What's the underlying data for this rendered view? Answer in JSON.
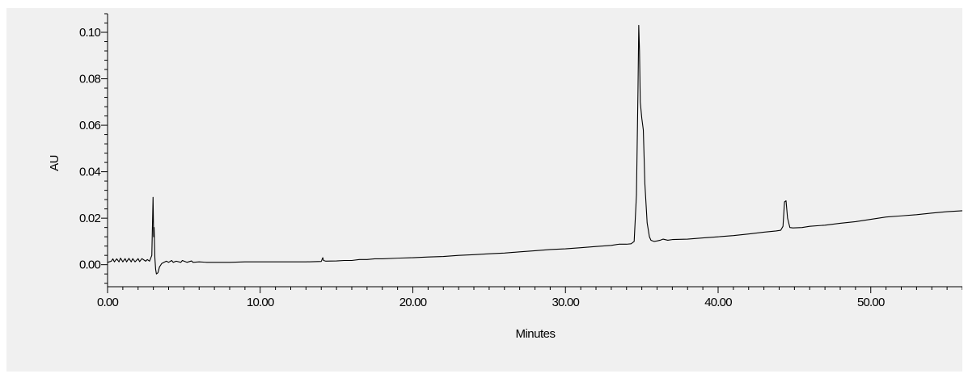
{
  "chart_data": {
    "type": "line",
    "title": "",
    "xlabel": "Minutes",
    "ylabel": "AU",
    "xlim": [
      0,
      56
    ],
    "ylim": [
      -0.0095,
      0.108
    ],
    "x_ticks": [
      0,
      10,
      20,
      30,
      40,
      50
    ],
    "x_tick_labels": [
      "0.00",
      "10.00",
      "20.00",
      "30.00",
      "40.00",
      "50.00"
    ],
    "y_ticks": [
      0,
      0.02,
      0.04,
      0.06,
      0.08,
      0.1
    ],
    "y_tick_labels": [
      "0.00",
      "0.02",
      "0.04",
      "0.06",
      "0.08",
      "0.10"
    ],
    "grid": false,
    "series": [
      {
        "color": "#000000",
        "x": [
          0,
          0.25,
          0.35,
          0.45,
          0.6,
          0.75,
          0.85,
          1.0,
          1.15,
          1.25,
          1.4,
          1.55,
          1.65,
          1.8,
          2.0,
          2.1,
          2.25,
          2.5,
          2.6,
          2.75,
          2.9,
          2.98,
          3.02,
          3.05,
          3.1,
          3.15,
          3.2,
          3.3,
          3.4,
          3.55,
          3.7,
          3.85,
          4.0,
          4.2,
          4.3,
          4.5,
          4.8,
          4.9,
          5.2,
          5.5,
          5.6,
          6.0,
          6.5,
          7.0,
          8.0,
          9.0,
          10.0,
          11.0,
          12.0,
          13.0,
          14.0,
          14.1,
          14.15,
          14.3,
          15.0,
          15.5,
          16.0,
          16.5,
          17.0,
          17.5,
          18.0,
          19.0,
          20.0,
          21.0,
          22.0,
          23.0,
          24.0,
          25.0,
          26.0,
          27.0,
          28.0,
          29.0,
          30.0,
          31.0,
          32.0,
          33.0,
          33.5,
          34.0,
          34.3,
          34.5,
          34.65,
          34.75,
          34.8,
          34.85,
          34.9,
          35.0,
          35.1,
          35.2,
          35.35,
          35.5,
          35.6,
          35.8,
          36.0,
          36.2,
          36.4,
          36.7,
          37.0,
          38.0,
          39.0,
          40.0,
          41.0,
          42.0,
          43.0,
          43.8,
          44.1,
          44.25,
          44.35,
          44.45,
          44.55,
          44.7,
          44.9,
          45.5,
          46.0,
          47.0,
          48.0,
          49.0,
          50.0,
          51.0,
          52.0,
          53.0,
          54.0,
          55.0,
          56.0
        ],
        "y": [
          0.001,
          0.0015,
          0.0025,
          0.0012,
          0.0025,
          0.0012,
          0.0028,
          0.0012,
          0.0026,
          0.0012,
          0.0027,
          0.0012,
          0.0026,
          0.0012,
          0.0026,
          0.0013,
          0.0026,
          0.0015,
          0.0022,
          0.0015,
          0.004,
          0.029,
          0.012,
          0.016,
          0.003,
          -0.002,
          -0.004,
          -0.0035,
          -0.001,
          0.0005,
          0.001,
          0.0015,
          0.001,
          0.0018,
          0.001,
          0.0015,
          0.001,
          0.0018,
          0.001,
          0.0016,
          0.001,
          0.0012,
          0.001,
          0.001,
          0.001,
          0.0012,
          0.0012,
          0.0012,
          0.0012,
          0.0012,
          0.0014,
          0.003,
          0.0018,
          0.0015,
          0.0016,
          0.0018,
          0.0018,
          0.0022,
          0.0022,
          0.0025,
          0.0025,
          0.0028,
          0.003,
          0.0033,
          0.0035,
          0.004,
          0.0043,
          0.0047,
          0.005,
          0.0055,
          0.006,
          0.0065,
          0.0068,
          0.0073,
          0.0078,
          0.0083,
          0.0088,
          0.0088,
          0.009,
          0.01,
          0.03,
          0.075,
          0.103,
          0.092,
          0.07,
          0.063,
          0.058,
          0.035,
          0.018,
          0.012,
          0.0105,
          0.01,
          0.0102,
          0.0105,
          0.011,
          0.0105,
          0.0108,
          0.011,
          0.0115,
          0.012,
          0.0125,
          0.0132,
          0.014,
          0.0145,
          0.0148,
          0.0165,
          0.027,
          0.0275,
          0.02,
          0.016,
          0.0158,
          0.016,
          0.0165,
          0.017,
          0.0178,
          0.0185,
          0.0195,
          0.0205,
          0.021,
          0.0215,
          0.0222,
          0.0228,
          0.0232
        ]
      }
    ]
  }
}
